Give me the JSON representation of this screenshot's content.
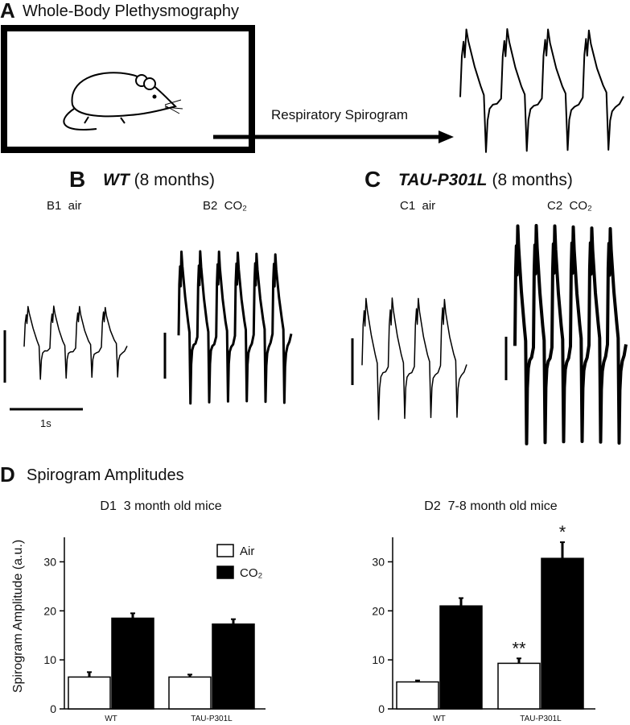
{
  "panel_a": {
    "label": "A",
    "title": "Whole-Body Plethysmography",
    "arrow_label": "Respiratory Spirogram"
  },
  "panel_b": {
    "label": "B",
    "genotype": "WT",
    "age": "(8 months)",
    "left_trace": "B1  air",
    "right_trace": "B2  CO₂",
    "scale_label": "1s"
  },
  "panel_c": {
    "label": "C",
    "genotype": "TAU-P301L",
    "age": "(8 months)",
    "left_trace": "C1  air",
    "right_trace": "C2  CO₂"
  },
  "panel_d": {
    "label": "D",
    "title": "Spirogram Amplitudes"
  },
  "chart_data": [
    {
      "type": "bar",
      "title": "D1  3 month old mice",
      "y_label": "Spirogram Amplitude (a.u.)",
      "categories": [
        "WT",
        "TAU-P301L"
      ],
      "series": [
        {
          "name": "Air",
          "color": "#ffffff",
          "values": [
            6.5,
            6.5
          ],
          "errors": [
            1,
            0.5
          ]
        },
        {
          "name": "CO₂",
          "color": "#000000",
          "values": [
            18.5,
            17.3
          ],
          "errors": [
            1,
            1
          ]
        }
      ],
      "ylim": [
        0,
        35
      ],
      "yticks": [
        0,
        10,
        20,
        30
      ],
      "legend": "top-right"
    },
    {
      "type": "bar",
      "title": "D2  7-8 month old mice",
      "categories": [
        "WT",
        "TAU-P301L"
      ],
      "series": [
        {
          "color": "#ffffff",
          "values": [
            5.5,
            9.3
          ],
          "errors": [
            0.3,
            1
          ],
          "markers": [
            null,
            "**"
          ]
        },
        {
          "color": "#000000",
          "values": [
            21,
            30.7
          ],
          "errors": [
            1.6,
            3.3
          ],
          "markers": [
            null,
            "*"
          ]
        }
      ],
      "ylim": [
        0,
        35
      ],
      "yticks": [
        0,
        10,
        20,
        30
      ]
    }
  ]
}
